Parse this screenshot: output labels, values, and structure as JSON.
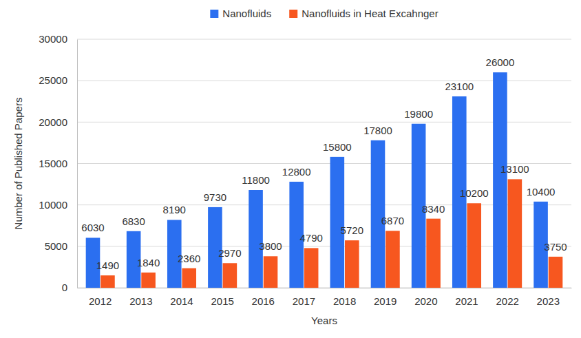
{
  "chart_data": {
    "type": "bar",
    "x_label": "Years",
    "y_label": "Number of Published Papers",
    "categories": [
      "2012",
      "2013",
      "2014",
      "2015",
      "2016",
      "2017",
      "2018",
      "2019",
      "2020",
      "2021",
      "2022",
      "2023"
    ],
    "series": [
      {
        "name": "Nanofluids",
        "color": "#2b6ff0",
        "values": [
          6030,
          6830,
          8190,
          9730,
          11800,
          12800,
          15800,
          17800,
          19800,
          23100,
          26000,
          10400
        ]
      },
      {
        "name": "Nanofluids in Heat Excahnger",
        "color": "#f7571f",
        "values": [
          1490,
          1840,
          2360,
          2970,
          3800,
          4790,
          5720,
          6870,
          8340,
          10200,
          13100,
          3750
        ]
      }
    ],
    "ylim": [
      0,
      30000
    ],
    "yticks": [
      0,
      5000,
      10000,
      15000,
      20000,
      25000,
      30000
    ],
    "grid": true,
    "legend": "top",
    "data_labels": true
  }
}
